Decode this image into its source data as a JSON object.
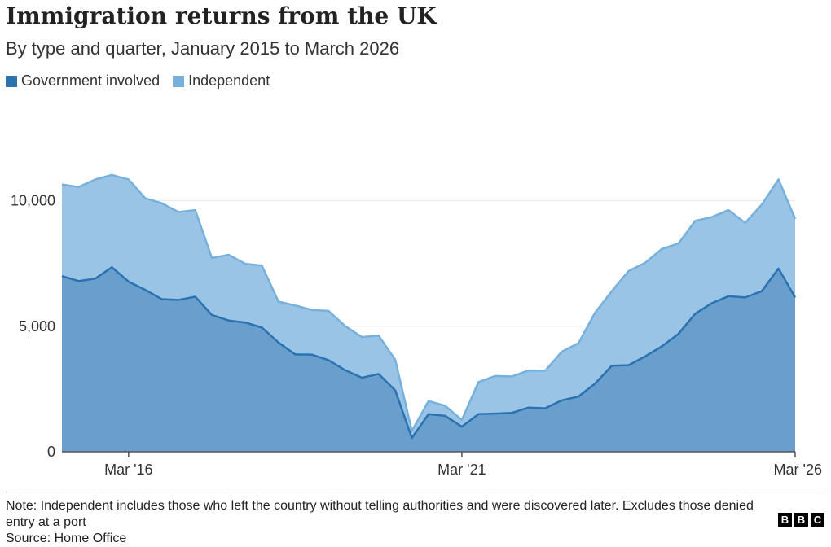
{
  "header": {
    "title": "Immigration returns from the UK",
    "subtitle": "By type and quarter, January 2015 to March 2026"
  },
  "legend": {
    "government_label": "Government involved",
    "independent_label": "Independent"
  },
  "colors": {
    "government": "#2a72b0",
    "government_fill": "#6a9fcd",
    "independent": "#76b0dc",
    "independent_fill": "#9ac4e6",
    "grid": "#e6e6e6",
    "axis": "#555555"
  },
  "chart_data": {
    "type": "area",
    "stacked": true,
    "x": [
      "Mar '15",
      "Jun '15",
      "Sep '15",
      "Dec '15",
      "Mar '16",
      "Jun '16",
      "Sep '16",
      "Dec '16",
      "Mar '17",
      "Jun '17",
      "Sep '17",
      "Dec '17",
      "Mar '18",
      "Jun '18",
      "Sep '18",
      "Dec '18",
      "Mar '19",
      "Jun '19",
      "Sep '19",
      "Dec '19",
      "Mar '20",
      "Jun '20",
      "Sep '20",
      "Dec '20",
      "Mar '21",
      "Jun '21",
      "Sep '21",
      "Dec '21",
      "Mar '22",
      "Jun '22",
      "Sep '22",
      "Dec '22",
      "Mar '23",
      "Jun '23",
      "Sep '23",
      "Dec '23",
      "Mar '24",
      "Jun '24",
      "Sep '24",
      "Dec '24",
      "Mar '25",
      "Jun '25",
      "Sep '25",
      "Dec '25",
      "Mar '26"
    ],
    "series": [
      {
        "name": "Government involved",
        "values": [
          7000,
          6800,
          6900,
          7350,
          6780,
          6450,
          6080,
          6050,
          6180,
          5450,
          5230,
          5150,
          4950,
          4350,
          3880,
          3870,
          3650,
          3250,
          2950,
          3100,
          2450,
          550,
          1500,
          1430,
          1000,
          1500,
          1520,
          1550,
          1760,
          1730,
          2050,
          2200,
          2720,
          3430,
          3450,
          3800,
          4200,
          4700,
          5500,
          5920,
          6200,
          6150,
          6400,
          7300,
          6150
        ]
      },
      {
        "name": "Independent",
        "values": [
          3650,
          3750,
          3950,
          3680,
          4070,
          3650,
          3820,
          3500,
          3450,
          2270,
          2620,
          2340,
          2470,
          1630,
          1950,
          1780,
          1960,
          1760,
          1620,
          1530,
          1220,
          280,
          520,
          400,
          270,
          1280,
          1500,
          1450,
          1480,
          1500,
          1940,
          2130,
          2830,
          2970,
          3750,
          3730,
          3880,
          3600,
          3700,
          3430,
          3430,
          2970,
          3450,
          3550,
          3130
        ]
      }
    ],
    "x_ticks": [
      "Mar '16",
      "Mar '21",
      "Mar '26"
    ],
    "y_ticks": [
      "0",
      "5,000",
      "10,000"
    ],
    "ylim": [
      0,
      12000
    ],
    "grid": true,
    "legend_position": "top-left"
  },
  "footer": {
    "note": "Note: Independent includes those who left the country without telling authorities and were discovered later. Excludes those denied entry at a port",
    "source": "Source: Home Office",
    "logo_letters": [
      "B",
      "B",
      "C"
    ]
  }
}
